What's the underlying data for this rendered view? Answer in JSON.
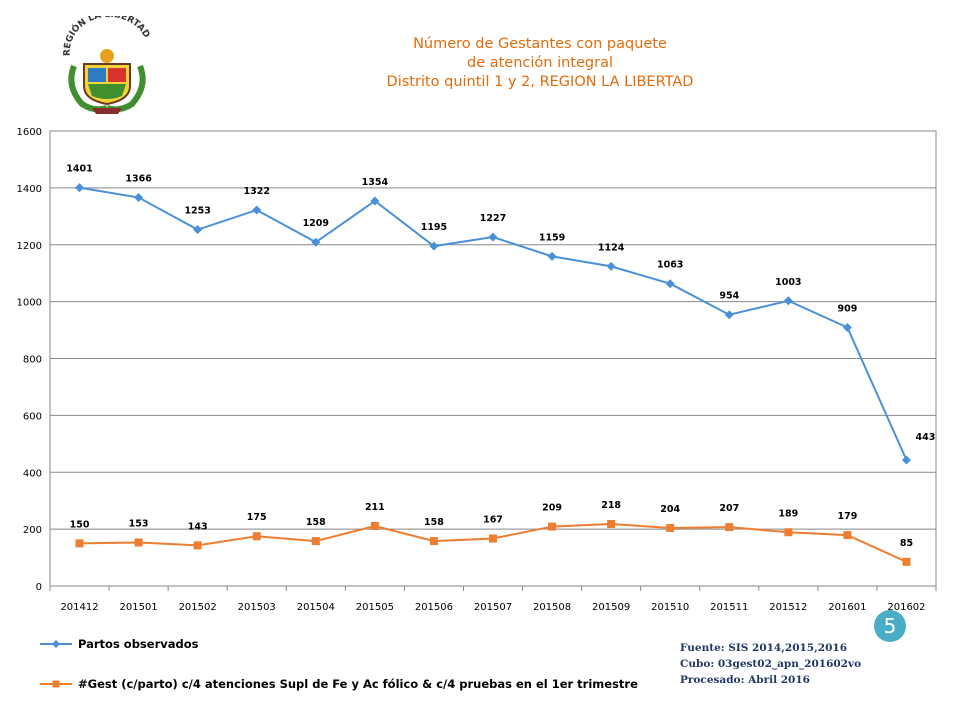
{
  "header": {
    "title_line1": "Número de Gestantes con paquete",
    "title_line2": "de atención integral",
    "title_line3": "Distrito quintil 1 y 2, REGION LA LIBERTAD",
    "logo_text": "REGIÓN LA LIBERTAD"
  },
  "chart_data": {
    "type": "line",
    "categories": [
      "201412",
      "201501",
      "201502",
      "201503",
      "201504",
      "201505",
      "201506",
      "201507",
      "201508",
      "201509",
      "201510",
      "201511",
      "201512",
      "201601",
      "201602"
    ],
    "series": [
      {
        "name": "Partos observados",
        "color": "#4A90D9",
        "marker": "diamond",
        "values": [
          1401,
          1366,
          1253,
          1322,
          1209,
          1354,
          1195,
          1227,
          1159,
          1124,
          1063,
          954,
          1003,
          909,
          443
        ]
      },
      {
        "name": "#Gest (c/parto) c/4 atenciones Supl de Fe y Ac fólico & c/4 pruebas en el 1er trimestre",
        "color": "#ED7D31",
        "marker": "square",
        "values": [
          150,
          153,
          143,
          175,
          158,
          211,
          158,
          167,
          209,
          218,
          204,
          207,
          189,
          179,
          85
        ]
      }
    ],
    "ylim": [
      0,
      1600
    ],
    "yticks": [
      0,
      200,
      400,
      600,
      800,
      1000,
      1200,
      1400,
      1600
    ],
    "grid": true,
    "legend_position": "bottom-left"
  },
  "source": {
    "line1": "Fuente: SIS 2014,2015,2016",
    "line2": "Cubo: 03gest02_apn_201602vo",
    "line3": "Procesado: Abril 2016"
  },
  "page_number": "5"
}
